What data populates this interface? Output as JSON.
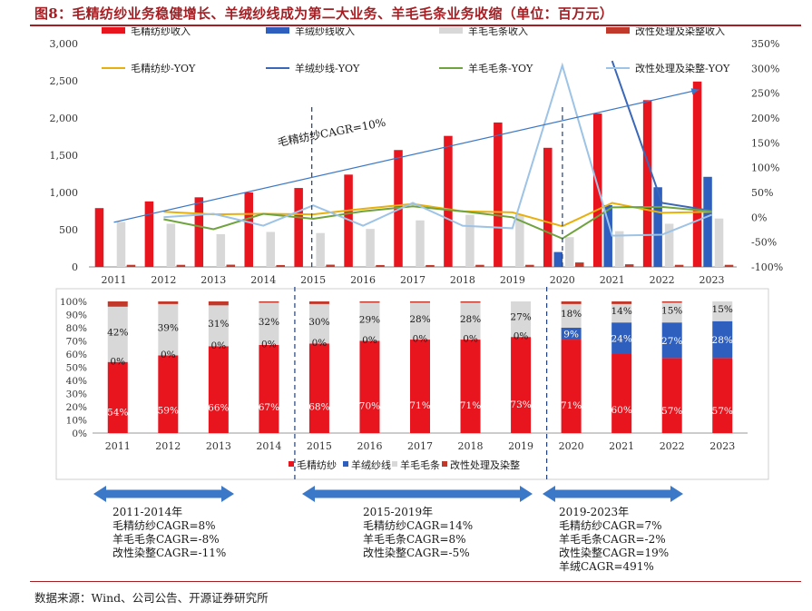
{
  "title": "图8：毛精纺纱业务稳健增长、羊绒纱线成为第二大业务、羊毛毛条业务收缩（单位：百万元）",
  "source": "数据来源：Wind、公司公告、开源证券研究所",
  "colors": {
    "worsted": "#e8141e",
    "cashmere": "#2e5fbe",
    "wooltop": "#d8d8d8",
    "dyeing": "#c0392b",
    "worsted_yoy": "#e8b00c",
    "cashmere_yoy": "#3a67b8",
    "wooltop_yoy": "#6fa33e",
    "dyeing_yoy": "#9dc3e6",
    "accent": "#a31f24",
    "arrow": "#3b78c8"
  },
  "chart_data": [
    {
      "type": "bar",
      "categories": [
        "2011",
        "2012",
        "2013",
        "2014",
        "2015",
        "2016",
        "2017",
        "2018",
        "2019",
        "2020",
        "2021",
        "2022",
        "2023"
      ],
      "ylim": [
        0,
        3000
      ],
      "yticks": [
        "0",
        "500",
        "1,000",
        "1,500",
        "2,000",
        "2,500",
        "3,000"
      ],
      "y2lim": [
        -100,
        350
      ],
      "y2ticks": [
        "-100%",
        "-50%",
        "0%",
        "50%",
        "100%",
        "150%",
        "200%",
        "250%",
        "300%",
        "350%"
      ],
      "series": [
        {
          "name": "毛精纺纱收入",
          "values": [
            790,
            880,
            935,
            1000,
            1060,
            1240,
            1570,
            1760,
            1940,
            1600,
            2060,
            2240,
            2490
          ]
        },
        {
          "name": "羊绒纱线收入",
          "values": [
            0,
            0,
            0,
            0,
            0,
            0,
            0,
            0,
            0,
            200,
            830,
            1070,
            1210
          ]
        },
        {
          "name": "羊毛毛条收入",
          "values": [
            605,
            580,
            440,
            470,
            455,
            510,
            625,
            700,
            700,
            400,
            480,
            580,
            650
          ]
        },
        {
          "name": "改性处理及染整收入",
          "values": [
            28,
            28,
            30,
            25,
            30,
            25,
            25,
            28,
            28,
            60,
            35,
            28,
            28
          ]
        }
      ],
      "yoy_series": [
        {
          "name": "毛精纺纱-YOY",
          "values": [
            null,
            11,
            6,
            7,
            6,
            17,
            27,
            12,
            10,
            -18,
            29,
            9,
            11
          ]
        },
        {
          "name": "羊绒纱线-YOY",
          "values": [
            null,
            null,
            null,
            null,
            null,
            null,
            null,
            null,
            null,
            null,
            315,
            29,
            13
          ]
        },
        {
          "name": "羊毛毛条-YOY",
          "values": [
            null,
            -4,
            -24,
            7,
            -3,
            12,
            22,
            12,
            0,
            -43,
            20,
            21,
            12
          ]
        },
        {
          "name": "改性处理及染整-YOY",
          "values": [
            null,
            0,
            7,
            -17,
            24,
            -17,
            29,
            -17,
            -22,
            306,
            -37,
            -35,
            5
          ]
        }
      ],
      "annotation": "毛精纺纱CAGR=10%"
    },
    {
      "type": "bar",
      "stacked": true,
      "percent": true,
      "categories": [
        "2011",
        "2012",
        "2013",
        "2014",
        "2015",
        "2016",
        "2017",
        "2018",
        "2019",
        "2020",
        "2021",
        "2022",
        "2023"
      ],
      "ylim": [
        0,
        100
      ],
      "yticks": [
        "0%",
        "10%",
        "20%",
        "30%",
        "40%",
        "50%",
        "60%",
        "70%",
        "80%",
        "90%",
        "100%"
      ],
      "series": [
        {
          "name": "毛精纺纱",
          "values": [
            54,
            59,
            66,
            67,
            68,
            70,
            71,
            71,
            73,
            71,
            60,
            57,
            57
          ]
        },
        {
          "name": "羊绒纱线",
          "values": [
            0,
            0,
            0,
            0,
            0,
            0,
            0,
            0,
            0,
            9,
            24,
            27,
            28
          ]
        },
        {
          "name": "羊毛毛条",
          "values": [
            42,
            39,
            31,
            32,
            30,
            29,
            28,
            28,
            27,
            18,
            14,
            15,
            15
          ]
        },
        {
          "name": "改性处理及染整",
          "values": [
            4,
            2,
            3,
            1,
            2,
            1,
            1,
            1,
            0,
            2,
            2,
            1,
            0
          ]
        }
      ],
      "labels": {
        "worsted": [
          "54%",
          "59%",
          "66%",
          "67%",
          "68%",
          "70%",
          "71%",
          "71%",
          "73%",
          "71%",
          "60%",
          "57%",
          "57%"
        ],
        "cashmere": [
          "0%",
          "0%",
          "0%",
          "0%",
          "0%",
          "0%",
          "0%",
          "0%",
          "0%",
          "9%",
          "24%",
          "27%",
          "28%"
        ],
        "wooltop": [
          "42%",
          "39%",
          "31%",
          "32%",
          "30%",
          "29%",
          "28%",
          "28%",
          "27%",
          "18%",
          "14%",
          "15%",
          "15%"
        ]
      }
    }
  ],
  "periods": [
    {
      "label": "2011-2014年",
      "lines": [
        "毛精纺纱CAGR=8%",
        "羊毛毛条CAGR=-8%",
        "改性染整CAGR=-11%"
      ]
    },
    {
      "label": "2015-2019年",
      "lines": [
        "毛精纺纱CAGR=14%",
        "羊毛毛条CAGR=8%",
        "改性染整CAGR=-5%"
      ]
    },
    {
      "label": "2019-2023年",
      "lines": [
        "毛精纺纱CAGR=7%",
        "羊毛毛条CAGR=-2%",
        "改性染整CAGR=19%",
        "羊绒CAGR=491%"
      ]
    }
  ]
}
